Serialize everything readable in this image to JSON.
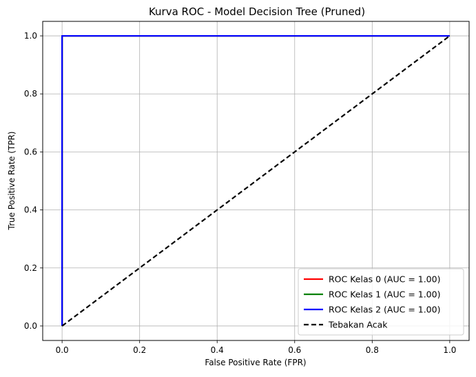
{
  "chart_data": {
    "type": "line",
    "title": "Kurva ROC - Model Decision Tree (Pruned)",
    "xlabel": "False Positive Rate (FPR)",
    "ylabel": "True Positive Rate (TPR)",
    "xlim": [
      -0.05,
      1.05
    ],
    "ylim": [
      -0.05,
      1.05
    ],
    "x_ticks": [
      0.0,
      0.2,
      0.4,
      0.6,
      0.8,
      1.0
    ],
    "y_ticks": [
      0.0,
      0.2,
      0.4,
      0.6,
      0.8,
      1.0
    ],
    "x_tick_labels": [
      "0.0",
      "0.2",
      "0.4",
      "0.6",
      "0.8",
      "1.0"
    ],
    "y_tick_labels": [
      "0.0",
      "0.2",
      "0.4",
      "0.6",
      "0.8",
      "1.0"
    ],
    "grid": true,
    "legend_position": "lower-right",
    "series": [
      {
        "name": "ROC Kelas 0 (AUC = 1.00)",
        "color": "#ff0000",
        "dash": "solid",
        "x": [
          0.0,
          0.0,
          1.0
        ],
        "y": [
          0.0,
          1.0,
          1.0
        ]
      },
      {
        "name": "ROC Kelas 1 (AUC = 1.00)",
        "color": "#008000",
        "dash": "solid",
        "x": [
          0.0,
          0.0,
          1.0
        ],
        "y": [
          0.0,
          1.0,
          1.0
        ]
      },
      {
        "name": "ROC Kelas 2 (AUC = 1.00)",
        "color": "#0000ff",
        "dash": "solid",
        "x": [
          0.0,
          0.0,
          1.0
        ],
        "y": [
          0.0,
          1.0,
          1.0
        ]
      },
      {
        "name": "Tebakan Acak",
        "color": "#000000",
        "dash": "dashed",
        "x": [
          0.0,
          1.0
        ],
        "y": [
          0.0,
          1.0
        ]
      }
    ]
  }
}
